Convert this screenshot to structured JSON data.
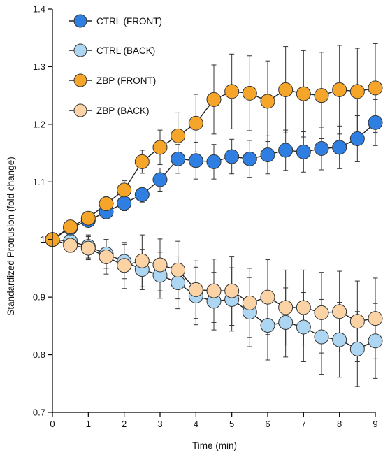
{
  "chart_data": {
    "type": "line",
    "xlabel": "Time (min)",
    "ylabel": "Standardized Protrusion (fold change)",
    "xlim": [
      0,
      9
    ],
    "ylim": [
      0.7,
      1.4
    ],
    "xticks": [
      0,
      1,
      2,
      3,
      4,
      5,
      6,
      7,
      8,
      9
    ],
    "yticks": [
      0.7,
      0.8,
      0.9,
      1,
      1.1,
      1.2,
      1.3,
      1.4
    ],
    "ytick_labels": [
      "0.7",
      "0.8",
      "0.9",
      "1",
      "1.1",
      "1.2",
      "1.3",
      "1.4"
    ],
    "grid": false,
    "legend_position": "top-left",
    "x": [
      0,
      0.5,
      1,
      1.5,
      2,
      2.5,
      3,
      3.5,
      4,
      4.5,
      5,
      5.5,
      6,
      6.5,
      7,
      7.5,
      8,
      8.5,
      9
    ],
    "series": [
      {
        "name": "CTRL (FRONT)",
        "color": "#2f7fe3",
        "values": [
          1.0,
          1.02,
          1.033,
          1.048,
          1.063,
          1.078,
          1.104,
          1.14,
          1.137,
          1.135,
          1.144,
          1.14,
          1.147,
          1.155,
          1.152,
          1.158,
          1.16,
          1.175,
          1.203
        ],
        "errors": [
          0,
          0.008,
          0.008,
          0.01,
          0.013,
          0.013,
          0.02,
          0.025,
          0.032,
          0.03,
          0.03,
          0.032,
          0.033,
          0.035,
          0.035,
          0.037,
          0.037,
          0.04,
          0.04
        ]
      },
      {
        "name": "CTRL (BACK)",
        "color": "#acd6f2",
        "values": [
          1.0,
          0.997,
          0.988,
          0.975,
          0.962,
          0.948,
          0.938,
          0.925,
          0.902,
          0.893,
          0.896,
          0.874,
          0.851,
          0.856,
          0.848,
          0.831,
          0.826,
          0.81,
          0.824
        ],
        "errors": [
          0,
          0.01,
          0.02,
          0.025,
          0.03,
          0.035,
          0.04,
          0.045,
          0.05,
          0.05,
          0.055,
          0.06,
          0.06,
          0.06,
          0.06,
          0.065,
          0.065,
          0.065,
          0.065
        ]
      },
      {
        "name": "ZBP (FRONT)",
        "color": "#f6a52b",
        "values": [
          1.0,
          1.022,
          1.037,
          1.062,
          1.086,
          1.135,
          1.16,
          1.18,
          1.202,
          1.243,
          1.257,
          1.254,
          1.24,
          1.26,
          1.253,
          1.25,
          1.26,
          1.257,
          1.263
        ],
        "errors": [
          0,
          0.008,
          0.01,
          0.013,
          0.016,
          0.02,
          0.03,
          0.04,
          0.05,
          0.06,
          0.065,
          0.065,
          0.07,
          0.075,
          0.075,
          0.075,
          0.077,
          0.075,
          0.077
        ]
      },
      {
        "name": "ZBP (BACK)",
        "color": "#fbd3a5",
        "values": [
          1.0,
          0.99,
          0.985,
          0.97,
          0.955,
          0.963,
          0.956,
          0.947,
          0.913,
          0.911,
          0.911,
          0.89,
          0.9,
          0.882,
          0.882,
          0.873,
          0.875,
          0.858,
          0.863
        ],
        "errors": [
          0,
          0.012,
          0.02,
          0.03,
          0.04,
          0.045,
          0.045,
          0.05,
          0.05,
          0.055,
          0.06,
          0.06,
          0.065,
          0.065,
          0.065,
          0.07,
          0.07,
          0.07,
          0.07
        ]
      }
    ]
  }
}
